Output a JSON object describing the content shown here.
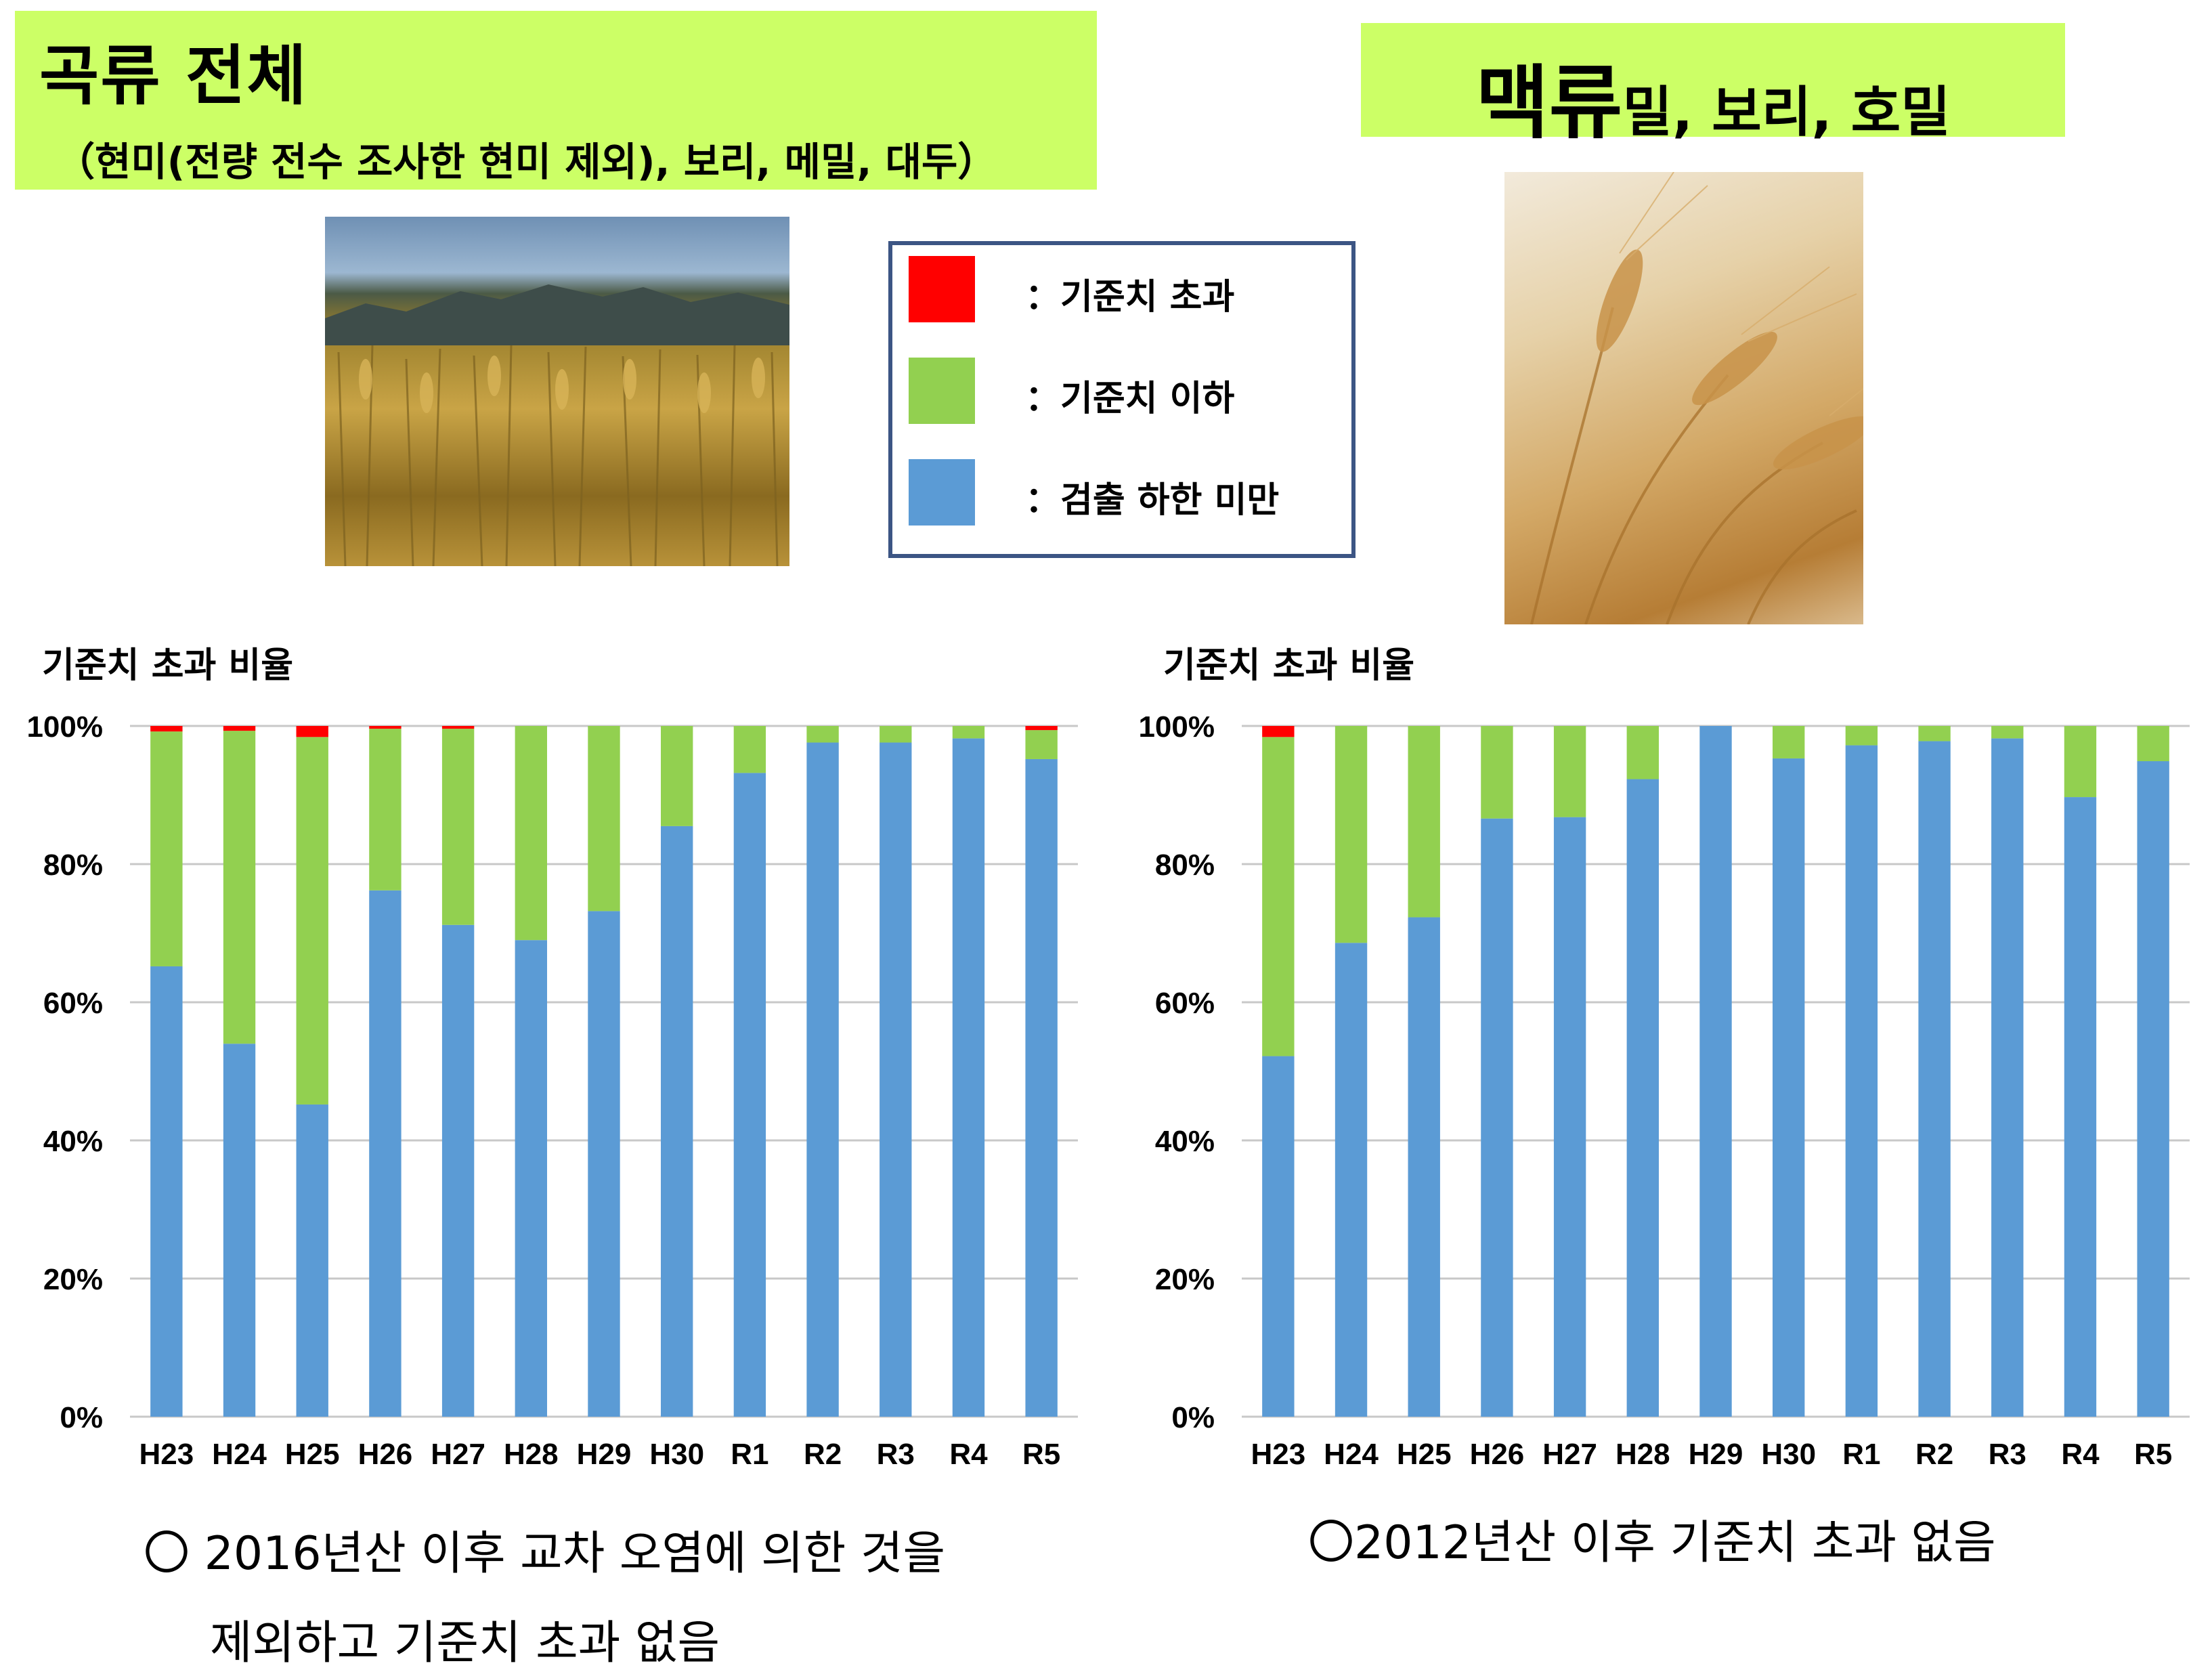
{
  "banner_left": {
    "title": "곡류 전체",
    "subtitle": "（현미(전량 전수 조사한 현미 제외), 보리, 메밀, 대두）"
  },
  "banner_right": {
    "title": "맥류",
    "subtitle": "밀, 보리, 호밀"
  },
  "legend": {
    "items": [
      {
        "label": "：기준치 초과",
        "color": "#ff0000"
      },
      {
        "label": "：기준치 이하",
        "color": "#92d050"
      },
      {
        "label": "：검출 하한 미만",
        "color": "#5b9bd5"
      }
    ]
  },
  "colors": {
    "exceed": "#ff0000",
    "below": "#92d050",
    "undetected": "#5b9bd5"
  },
  "chart_data": [
    {
      "type": "bar",
      "stacked": true,
      "title": "기준치 초과 비율",
      "categories": [
        "H23",
        "H24",
        "H25",
        "H26",
        "H27",
        "H28",
        "H29",
        "H30",
        "R1",
        "R2",
        "R3",
        "R4",
        "R5"
      ],
      "yticks": [
        "0%",
        "20%",
        "40%",
        "60%",
        "80%",
        "100%"
      ],
      "ylim": [
        0,
        100
      ],
      "grid": true,
      "series": [
        {
          "key": "undetected",
          "values": [
            65.2,
            54.0,
            45.2,
            76.2,
            71.2,
            69.0,
            73.2,
            85.5,
            93.2,
            97.6,
            97.6,
            98.2,
            95.2
          ]
        },
        {
          "key": "below",
          "values": [
            34.0,
            45.3,
            53.2,
            23.4,
            28.4,
            31.0,
            26.8,
            14.5,
            6.8,
            2.4,
            2.4,
            1.8,
            4.2
          ]
        },
        {
          "key": "exceed",
          "values": [
            0.8,
            0.7,
            1.6,
            0.4,
            0.4,
            0,
            0,
            0,
            0,
            0,
            0,
            0,
            0.6
          ]
        }
      ]
    },
    {
      "type": "bar",
      "stacked": true,
      "title": "기준치 초과 비율",
      "categories": [
        "H23",
        "H24",
        "H25",
        "H26",
        "H27",
        "H28",
        "H29",
        "H30",
        "R1",
        "R2",
        "R3",
        "R4",
        "R5"
      ],
      "yticks": [
        "0%",
        "20%",
        "40%",
        "60%",
        "80%",
        "100%"
      ],
      "ylim": [
        0,
        100
      ],
      "grid": true,
      "series": [
        {
          "key": "undetected",
          "values": [
            52.2,
            68.6,
            72.3,
            86.6,
            86.8,
            92.3,
            100,
            95.3,
            97.2,
            97.8,
            98.2,
            89.7,
            94.9
          ]
        },
        {
          "key": "below",
          "values": [
            46.2,
            31.4,
            27.7,
            13.4,
            13.2,
            7.7,
            0,
            4.7,
            2.8,
            2.2,
            1.8,
            10.3,
            5.1
          ]
        },
        {
          "key": "exceed",
          "values": [
            1.6,
            0,
            0,
            0,
            0,
            0,
            0,
            0,
            0,
            0,
            0,
            0,
            0
          ]
        }
      ]
    }
  ],
  "notes": {
    "left_line1": "〇 2016년산 이후 교차 오염에 의한 것을",
    "left_line2": "제외하고 기준치 초과 없음",
    "right": "〇2012년산 이후 기준치 초과 없음"
  }
}
